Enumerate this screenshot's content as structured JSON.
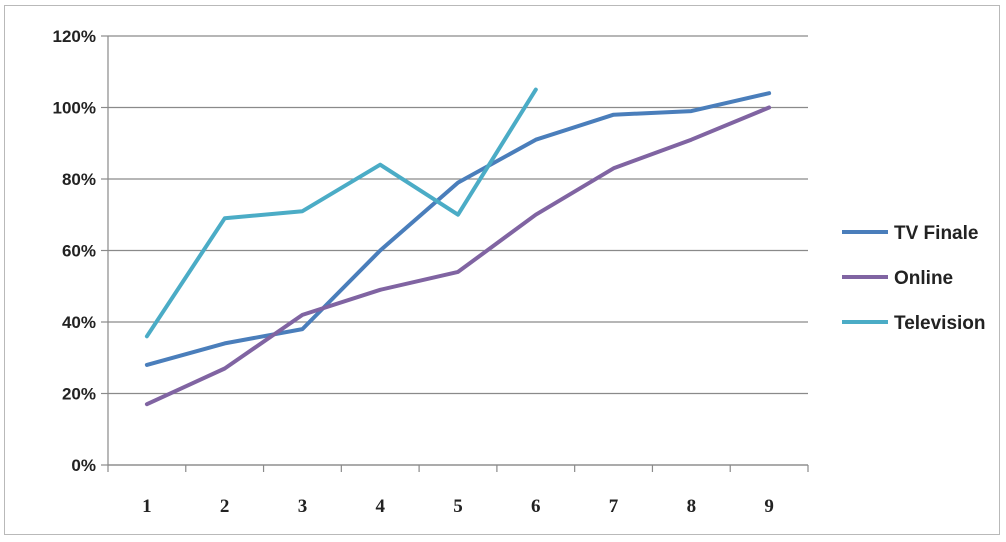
{
  "chart_data": {
    "type": "line",
    "title": "",
    "xlabel": "",
    "ylabel": "",
    "categories": [
      "1",
      "2",
      "3",
      "4",
      "5",
      "6",
      "7",
      "8",
      "9"
    ],
    "ylim": [
      0,
      1.2
    ],
    "yticks": [
      "0%",
      "20%",
      "40%",
      "60%",
      "80%",
      "100%",
      "120%"
    ],
    "grid": "horizontal",
    "legend_position": "right",
    "series": [
      {
        "name": "TV Finale",
        "color": "#4a7ebb",
        "values": [
          0.28,
          0.34,
          0.38,
          0.6,
          0.79,
          0.91,
          0.98,
          0.99,
          1.04
        ]
      },
      {
        "name": "Online",
        "color": "#8064a2",
        "values": [
          0.17,
          0.27,
          0.42,
          0.49,
          0.54,
          0.7,
          0.83,
          0.91,
          1.0
        ]
      },
      {
        "name": "Television",
        "color": "#4bacc6",
        "values": [
          0.36,
          0.69,
          0.71,
          0.84,
          0.7,
          1.05,
          null,
          null,
          null
        ]
      }
    ]
  }
}
